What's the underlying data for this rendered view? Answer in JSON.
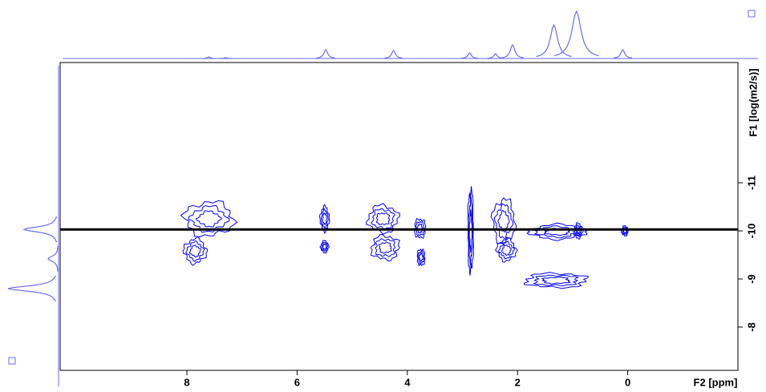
{
  "chart_data": {
    "type": "dosy",
    "x_label": "F2 [ppm]",
    "y_label": "F1 [log(m2/s)]",
    "xlim": [
      10.3,
      -2.0
    ],
    "xticks": [
      8,
      6,
      4,
      2,
      0
    ],
    "ylim": [
      -13.5,
      -7.1
    ],
    "yticks": [
      -11,
      -10,
      -9,
      -8
    ],
    "color": "#0000ff",
    "projection_color": "#6b6bff",
    "cursor_logd": -10.03,
    "f2_projection": {
      "ppm": [
        7.6,
        7.3,
        5.48,
        4.25,
        2.87,
        2.4,
        2.09,
        1.34,
        0.93,
        0.09
      ],
      "height": [
        2,
        1,
        11,
        10,
        7,
        6,
        17,
        42,
        59,
        11
      ]
    },
    "f1_projection": {
      "logd": [
        -10.03,
        -9.42,
        -8.8
      ],
      "height": [
        43,
        13,
        63
      ]
    },
    "contours": {
      "ppm": [
        7.6,
        7.85,
        5.5,
        5.5,
        4.44,
        4.4,
        3.77,
        3.75,
        2.85,
        2.25,
        2.2,
        1.28,
        0.9,
        0.05,
        1.3
      ],
      "logd": [
        -10.25,
        -9.58,
        -10.25,
        -9.67,
        -10.25,
        -9.65,
        -10.05,
        -9.45,
        -10.0,
        -10.2,
        -9.6,
        -9.98,
        -10.0,
        -10.0,
        -8.97
      ],
      "dppm": [
        0.44,
        0.2,
        0.08,
        0.07,
        0.27,
        0.25,
        0.1,
        0.07,
        0.05,
        0.2,
        0.17,
        0.5,
        0.08,
        0.06,
        0.55
      ],
      "dlogd": [
        0.35,
        0.25,
        0.25,
        0.12,
        0.28,
        0.25,
        0.2,
        0.17,
        0.85,
        0.45,
        0.22,
        0.15,
        0.15,
        0.1,
        0.15
      ]
    }
  }
}
